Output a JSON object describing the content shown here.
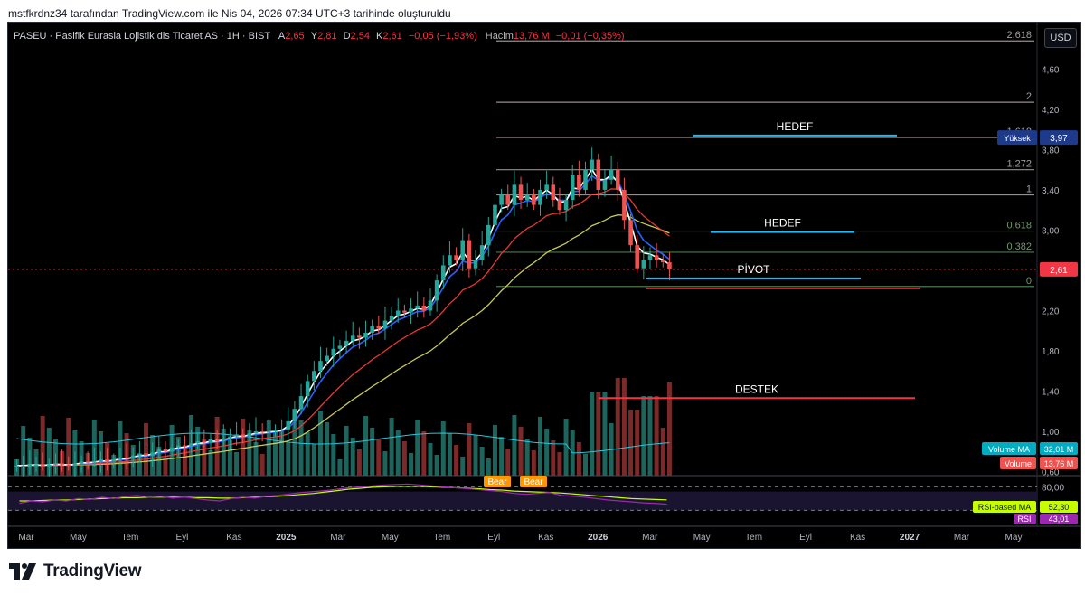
{
  "header": {
    "attribution": "mstfkrdnz34 tarafından TradingView.com ile Nis 04, 2026 07:34 UTC+3 tarihinde oluşturuldu"
  },
  "legend": {
    "symbol": "PASEU · Pasifik Eurasia Lojistik dis Ticaret AS · 1H · BIST",
    "open_label": "A",
    "open": "2,65",
    "high_label": "Y",
    "high": "2,81",
    "low_label": "D",
    "low": "2,54",
    "close_label": "K",
    "close": "2,61",
    "change": "−0,05 (−1,93%)",
    "volume_label": "Hacim",
    "volume": "13,76 M",
    "volume_change": "−0,01 (−0,35%)"
  },
  "currency": "USD",
  "footer": {
    "brand": "TradingView"
  },
  "colors": {
    "up": "#26a69a",
    "down": "#ef5350",
    "ema_fast": "#ffffff",
    "ema_blue": "#2962ff",
    "ema_red": "#e53935",
    "ema_yellow": "#c8c85a",
    "fib_line": "#9c8b8b",
    "target_line": "#29b6f6",
    "support_line": "#f23645"
  },
  "chart_data": [
    {
      "type": "candlestick",
      "title": "PASEU · Pasifik Eurasia Lojistik dis Ticaret AS · 1H · BIST",
      "xlabel": "",
      "ylabel": "",
      "ylim": [
        0.56,
        4.9
      ],
      "x_ticks": [
        "Mar",
        "May",
        "Tem",
        "Eyl",
        "Kas",
        "2025",
        "Mar",
        "May",
        "Tem",
        "Eyl",
        "Kas",
        "2026",
        "Mar",
        "May",
        "Tem",
        "Eyl",
        "Kas",
        "2027",
        "Mar",
        "May"
      ],
      "y_ticks": [
        "4,60",
        "4,20",
        "3,80",
        "3,40",
        "3,00",
        "2,60",
        "2,20",
        "1,80",
        "1,40",
        "1,00",
        "0,60"
      ],
      "price_close_series": [
        0.66,
        0.66,
        0.67,
        0.67,
        0.66,
        0.67,
        0.68,
        0.67,
        0.66,
        0.68,
        0.7,
        0.69,
        0.7,
        0.72,
        0.7,
        0.72,
        0.74,
        0.73,
        0.76,
        0.78,
        0.76,
        0.79,
        0.82,
        0.8,
        0.84,
        0.86,
        0.85,
        0.88,
        0.9,
        0.89,
        0.92,
        0.9,
        0.93,
        0.95,
        0.97,
        0.95,
        0.98,
        1.0,
        0.99,
        1.0,
        1.01,
        1.02,
        1.1,
        1.22,
        1.35,
        1.5,
        1.6,
        1.7,
        1.75,
        1.82,
        1.85,
        1.9,
        1.95,
        1.93,
        1.98,
        2.05,
        2.02,
        2.1,
        2.15,
        2.2,
        2.18,
        2.22,
        2.25,
        2.2,
        2.3,
        2.5,
        2.65,
        2.75,
        2.7,
        2.9,
        2.62,
        2.7,
        2.85,
        3.05,
        3.25,
        3.35,
        3.25,
        3.45,
        3.3,
        3.35,
        3.25,
        3.4,
        3.45,
        3.3,
        3.2,
        3.3,
        3.55,
        3.4,
        3.6,
        3.7,
        3.4,
        3.5,
        3.6,
        3.4,
        3.1,
        2.85,
        2.62,
        2.7,
        2.75,
        2.7,
        2.68,
        2.61
      ],
      "indicators": [
        {
          "name": "EMA (white)",
          "color": "#ffffff"
        },
        {
          "name": "EMA (blue)",
          "color": "#2962ff"
        },
        {
          "name": "EMA (red)",
          "color": "#e53935"
        },
        {
          "name": "EMA (yellow)",
          "color": "#c8c85a"
        },
        {
          "name": "Volume MA",
          "value_label": "32,01 M"
        },
        {
          "name": "Volume",
          "value_label": "13,76 M"
        }
      ],
      "fibonacci_levels": [
        {
          "label": "2,618",
          "price": 4.88
        },
        {
          "label": "2",
          "price": 4.27
        },
        {
          "label": "1,618",
          "price": 3.92
        },
        {
          "label": "1,272",
          "price": 3.6
        },
        {
          "label": "1",
          "price": 3.35
        },
        {
          "label": "0,618",
          "price": 2.99
        },
        {
          "label": "0,382",
          "price": 2.78
        },
        {
          "label": "0",
          "price": 2.44
        }
      ],
      "annotations": [
        {
          "label": "HEDEF",
          "price": 3.94
        },
        {
          "label": "HEDEF",
          "price": 2.98
        },
        {
          "label": "PİVOT",
          "price": 2.52
        },
        {
          "label": "DESTEK",
          "price": 1.33
        }
      ],
      "price_markers": [
        {
          "label": "Yüksek",
          "value": "3,97"
        },
        {
          "label": "",
          "value": "2,61"
        },
        {
          "label": "Volume MA",
          "value": "32,01 M"
        },
        {
          "label": "Volume",
          "value": "13,76 M"
        }
      ]
    },
    {
      "type": "line",
      "title": "RSI",
      "ylim": [
        0,
        100
      ],
      "y_ticks": [
        "80,00"
      ],
      "series": [
        {
          "name": "RSI",
          "value_label": "43,01",
          "values": [
            45,
            50,
            48,
            52,
            50,
            55,
            53,
            58,
            55,
            60,
            62,
            58,
            60,
            56,
            58,
            55,
            52,
            50,
            55,
            58,
            56,
            60,
            62,
            65,
            68,
            70,
            72,
            75,
            78,
            80,
            82,
            84,
            85,
            86,
            84,
            82,
            80,
            78,
            76,
            74,
            72,
            70,
            66,
            64,
            66,
            68,
            62,
            60,
            58,
            55,
            52,
            50,
            48,
            46,
            45,
            43
          ]
        },
        {
          "name": "RSI-based MA",
          "value_label": "52,30",
          "values": [
            50,
            50,
            51,
            52,
            52,
            53,
            54,
            55,
            56,
            57,
            57,
            58,
            58,
            58,
            58,
            57,
            57,
            56,
            56,
            57,
            58,
            59,
            60,
            62,
            64,
            66,
            69,
            72,
            75,
            77,
            79,
            80,
            81,
            81,
            81,
            80,
            79,
            78,
            77,
            76,
            74,
            73,
            71,
            70,
            69,
            68,
            67,
            65,
            63,
            61,
            59,
            57,
            55,
            54,
            53,
            52.3
          ]
        }
      ],
      "annotations": [
        {
          "label": "Bear"
        },
        {
          "label": "Bear"
        }
      ]
    }
  ]
}
